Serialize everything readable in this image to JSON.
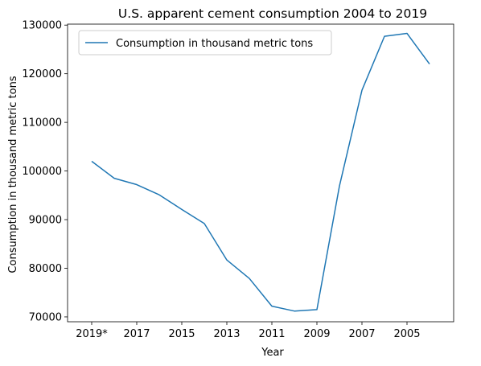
{
  "chart_data": {
    "type": "line",
    "title": "U.S. apparent cement consumption 2004 to 2019",
    "xlabel": "Year",
    "ylabel": "Consumption in thousand metric tons",
    "x": [
      "2019*",
      "2018",
      "2017",
      "2016",
      "2015",
      "2014",
      "2013",
      "2012",
      "2011",
      "2010",
      "2009",
      "2008",
      "2007",
      "2006",
      "2005",
      "2004"
    ],
    "x_tick_labels": [
      "2019*",
      "2017",
      "2015",
      "2013",
      "2011",
      "2009",
      "2007",
      "2005"
    ],
    "series": [
      {
        "name": "Consumption in thousand metric tons",
        "color": "#1f77b4",
        "values": [
          102000,
          98500,
          97200,
          95100,
          92100,
          89200,
          81700,
          77900,
          72200,
          71200,
          71500,
          96900,
          116600,
          127700,
          128300,
          122000
        ]
      }
    ],
    "ylim": [
      69000,
      130200
    ],
    "y_ticks": [
      70000,
      80000,
      90000,
      100000,
      110000,
      120000,
      130000
    ],
    "grid": false,
    "legend_position": "upper-left"
  }
}
